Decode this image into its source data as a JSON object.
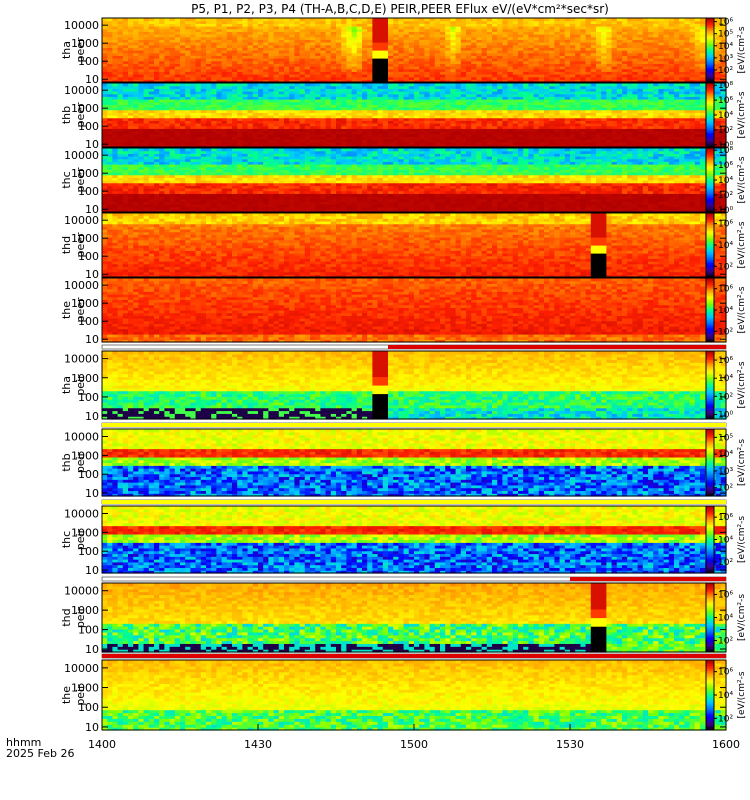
{
  "chart_data": {
    "type": "heatmap",
    "title": "P5, P1, P2, P3, P4 (TH-A,B,C,D,E) PEIR,PEER EFlux eV/(eV*cm²*sec*sr)",
    "x_axis": {
      "label_line1": "hhmm",
      "label_line2": "2025 Feb 26",
      "ticks": [
        "1400",
        "1430",
        "1500",
        "1530",
        "1600"
      ],
      "range_minutes": [
        0,
        120
      ]
    },
    "y_ticks": [
      "10",
      "100",
      "1000",
      "10000"
    ],
    "y_range_eV": [
      7,
      25000
    ],
    "y_scale": "log",
    "colorbar_label": "[eV/(cm²-s",
    "colorbar_scale": "log",
    "colorscale": [
      "#000000",
      "#3c0090",
      "#0000ff",
      "#0070ff",
      "#00c8ff",
      "#00ff90",
      "#80ff00",
      "#ffff00",
      "#ffa000",
      "#ff2000",
      "#b00000"
    ],
    "panels": [
      {
        "probe": "tha",
        "species": "peer",
        "cb_ticks": [
          "10⁶",
          "10⁵",
          "10⁴",
          "10³",
          "10²"
        ],
        "cb_log_range": [
          1,
          6.3
        ],
        "gap_minutes": [
          52,
          55
        ],
        "mode": "peer_a",
        "top_bar": null
      },
      {
        "probe": "thb",
        "species": "peer",
        "cb_ticks": [
          "10⁸",
          "10⁶",
          "10⁴",
          "10²",
          "10⁰"
        ],
        "cb_log_range": [
          -0.3,
          8.3
        ],
        "gap_minutes": null,
        "mode": "peer_bc",
        "top_bar": null
      },
      {
        "probe": "thc",
        "species": "peer",
        "cb_ticks": [
          "10⁸",
          "10⁶",
          "10⁴",
          "10²",
          "10⁰"
        ],
        "cb_log_range": [
          -0.3,
          8.3
        ],
        "gap_minutes": null,
        "mode": "peer_bc",
        "top_bar": null
      },
      {
        "probe": "thd",
        "species": "peer",
        "cb_ticks": [
          "10⁶",
          "10⁴",
          "10²"
        ],
        "cb_log_range": [
          1,
          7
        ],
        "gap_minutes": [
          94,
          96.5
        ],
        "mode": "peer_d",
        "top_bar": null
      },
      {
        "probe": "the",
        "species": "peer",
        "cb_ticks": [
          "10⁶",
          "10⁴",
          "10²"
        ],
        "cb_log_range": [
          1,
          7
        ],
        "gap_minutes": null,
        "mode": "peer_e",
        "top_bar": null
      },
      {
        "probe": "tha",
        "species": "peir",
        "cb_ticks": [
          "10⁶",
          "10⁴",
          "10²",
          "10⁰"
        ],
        "cb_log_range": [
          -0.5,
          7
        ],
        "gap_minutes": [
          52,
          55
        ],
        "mode": "peir_a",
        "top_bar": {
          "minutes": [
            55,
            120
          ],
          "color": "#dd0000"
        }
      },
      {
        "probe": "thb",
        "species": "peir",
        "cb_ticks": [
          "10⁵",
          "10⁴",
          "10³",
          "10²"
        ],
        "cb_log_range": [
          1.5,
          5.5
        ],
        "gap_minutes": null,
        "mode": "peir_bc",
        "top_bar": {
          "minutes": [
            0,
            120
          ],
          "color": "#ffff00"
        }
      },
      {
        "probe": "thc",
        "species": "peir",
        "cb_ticks": [
          "10⁶",
          "10⁴",
          "10²"
        ],
        "cb_log_range": [
          1,
          7
        ],
        "gap_minutes": null,
        "mode": "peir_bc",
        "top_bar": {
          "minutes": [
            0,
            120
          ],
          "color": "#ffff00"
        }
      },
      {
        "probe": "thd",
        "species": "peir",
        "cb_ticks": [
          "10⁶",
          "10⁴",
          "10²"
        ],
        "cb_log_range": [
          1,
          7
        ],
        "gap_minutes": [
          94,
          96.5
        ],
        "mode": "peir_d",
        "top_bar": {
          "minutes": [
            90,
            120
          ],
          "color": "#dd0000"
        }
      },
      {
        "probe": "the",
        "species": "peir",
        "cb_ticks": [
          "10⁶",
          "10⁴",
          "10²"
        ],
        "cb_log_range": [
          1,
          7
        ],
        "gap_minutes": null,
        "mode": "peir_e",
        "top_bar": {
          "minutes": [
            0,
            120
          ],
          "color": "#dd0000"
        }
      }
    ]
  }
}
